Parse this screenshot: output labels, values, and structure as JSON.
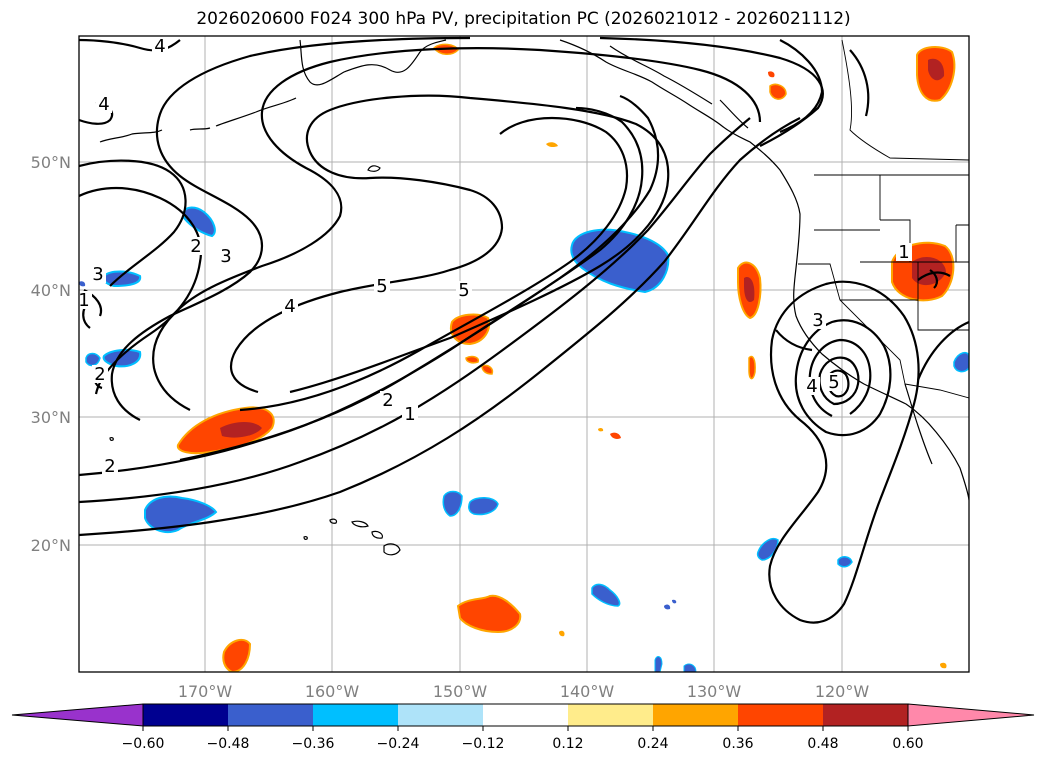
{
  "title": "2026020600 F024 300 hPa PV, precipitation PC (2026021012 - 2026021112)",
  "lon_labels": [
    "170°W",
    "160°W",
    "150°W",
    "140°W",
    "130°W",
    "120°W"
  ],
  "lat_labels": [
    "50°N",
    "40°N",
    "30°N",
    "20°N"
  ],
  "colorbar": {
    "ticks": [
      "−0.60",
      "−0.48",
      "−0.36",
      "−0.24",
      "−0.12",
      "0.12",
      "0.24",
      "0.36",
      "0.48",
      "0.60"
    ],
    "colors": [
      "#9932cc",
      "#000090",
      "#3a5fcd",
      "#00bfff",
      "#aee3f9",
      "#ffffff",
      "#ffec8b",
      "#ffa500",
      "#ff4500",
      "#b22222",
      "#ff88aa"
    ]
  },
  "contour_labels": [
    "4",
    "4",
    "2",
    "3",
    "3",
    "4",
    "5",
    "5",
    "2",
    "1",
    "2",
    "2",
    "1",
    "3",
    "4",
    "5",
    "1"
  ]
}
